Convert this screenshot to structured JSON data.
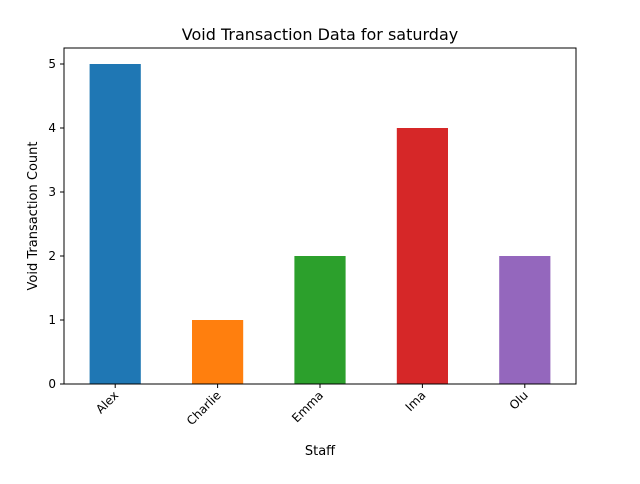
{
  "chart_data": {
    "type": "bar",
    "title": "Void Transaction Data for saturday",
    "xlabel": "Staff",
    "ylabel": "Void Transaction Count",
    "categories": [
      "Alex",
      "Charlie",
      "Emma",
      "Ima",
      "Olu"
    ],
    "values": [
      5,
      1,
      2,
      4,
      2
    ],
    "colors": [
      "#1f77b4",
      "#ff7f0e",
      "#2ca02c",
      "#d62728",
      "#9467bd"
    ],
    "ylim": [
      0,
      5.25
    ],
    "yticks": [
      0,
      1,
      2,
      3,
      4,
      5
    ],
    "grid": false,
    "legend": "none"
  }
}
